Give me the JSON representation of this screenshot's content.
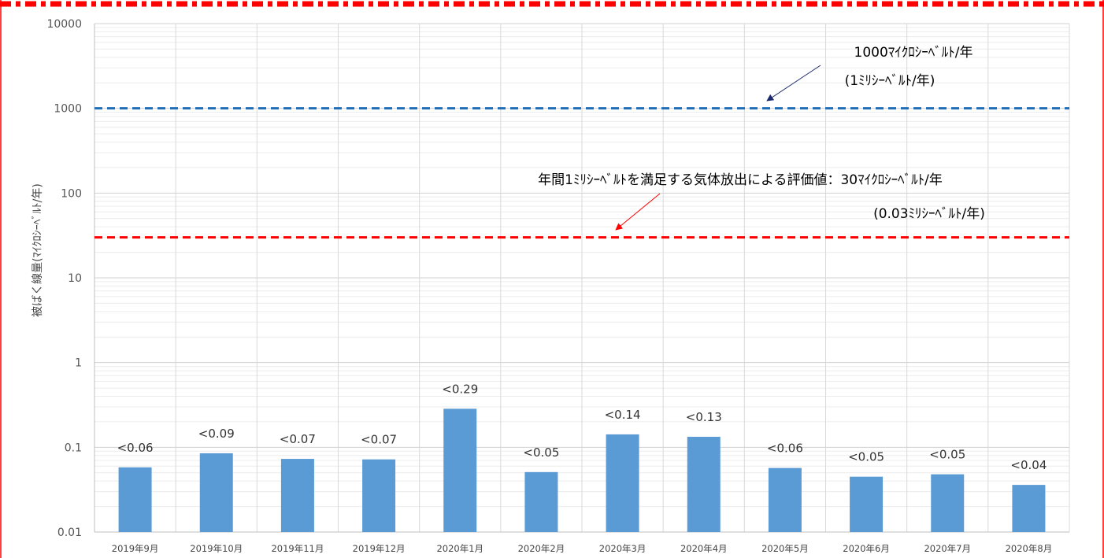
{
  "chart_data": {
    "type": "bar",
    "ylabel": "被ばく線量(ﾏｲｸﾛｼｰﾍﾞﾙﾄ/年)",
    "yscale": "log",
    "ylim": [
      0.01,
      10000
    ],
    "ytick_labels": [
      "0.01",
      "0.1",
      "1",
      "10",
      "100",
      "1000",
      "10000"
    ],
    "ytick_values": [
      0.01,
      0.1,
      1,
      10,
      100,
      1000,
      10000
    ],
    "grid": true,
    "categories": [
      "2019年9月",
      "2019年10月",
      "2019年11月",
      "2019年12月",
      "2020年1月",
      "2020年2月",
      "2020年3月",
      "2020年4月",
      "2020年5月",
      "2020年6月",
      "2020年7月",
      "2020年8月"
    ],
    "values": [
      0.058,
      0.085,
      0.073,
      0.072,
      0.285,
      0.051,
      0.142,
      0.133,
      0.057,
      0.045,
      0.048,
      0.036
    ],
    "data_labels": [
      "<0.06",
      "<0.09",
      "<0.07",
      "<0.07",
      "<0.29",
      "<0.05",
      "<0.14",
      "<0.13",
      "<0.06",
      "<0.05",
      "<0.05",
      "<0.04"
    ],
    "bar_color": "#5b9bd5",
    "reference_lines": [
      {
        "value": 1000,
        "color": "#1f6fb8",
        "style": "dashed",
        "label_lines": [
          "1000ﾏｲｸﾛｼｰﾍﾞﾙﾄ/年",
          "(1ﾐﾘｼｰﾍﾞﾙﾄ/年)"
        ],
        "arrow_color": "#1a2a6c"
      },
      {
        "value": 30,
        "color": "#ff0000",
        "style": "dashed",
        "label_lines": [
          "年間1ﾐﾘｼｰﾍﾞﾙﾄを満足する気体放出による評価値：30ﾏｲｸﾛｼｰﾍﾞﾙﾄ/年",
          "(0.03ﾐﾘｼｰﾍﾞﾙﾄ/年)"
        ],
        "arrow_color": "#ff0000"
      }
    ]
  },
  "frame_color": "#ff0000"
}
